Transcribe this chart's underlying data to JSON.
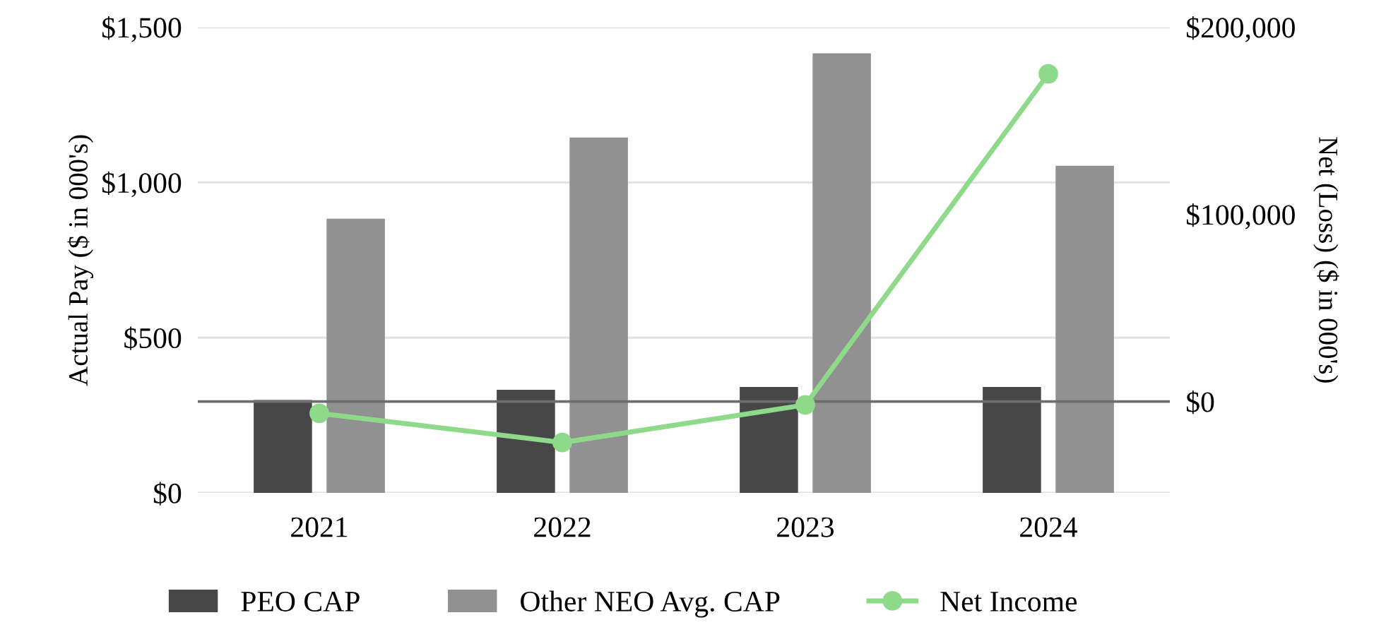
{
  "chart_data": {
    "type": "bar",
    "ylabel": "Actual Pay ($ in 000's)",
    "y2label": "Net (Loss) ($ in 000's)",
    "categories": [
      "2021",
      "2022",
      "2023",
      "2024"
    ],
    "series": [
      {
        "name": "PEO CAP",
        "color": "#474747",
        "values": [
          299,
          332,
          341,
          341
        ]
      },
      {
        "name": "Other NEO Avg. CAP",
        "color": "#919191",
        "values": [
          883,
          1145,
          1416,
          1054
        ]
      },
      {
        "name": "Net Income",
        "type": "line",
        "axis": "y2",
        "color": "#8ed98a",
        "marker": "circle",
        "values": [
          -6300,
          -21900,
          -1800,
          175100
        ]
      }
    ],
    "ylim": [
      0,
      1500
    ],
    "yticks": [
      {
        "value": 0,
        "label": "$0"
      },
      {
        "value": 500,
        "label": "$500"
      },
      {
        "value": 1000,
        "label": "$1,000"
      },
      {
        "value": 1500,
        "label": "$1,500"
      }
    ],
    "y2lim": [
      -48800,
      200000
    ],
    "y2ticks": [
      {
        "value": 0,
        "label": "$0"
      },
      {
        "value": 100000,
        "label": "$100,000"
      },
      {
        "value": 200000,
        "label": "$200,000"
      }
    ],
    "ref_lines": [
      {
        "axis": "y2",
        "value": 0,
        "color": "#6e6e6e"
      }
    ],
    "grid": "y",
    "legend": "bottom"
  }
}
